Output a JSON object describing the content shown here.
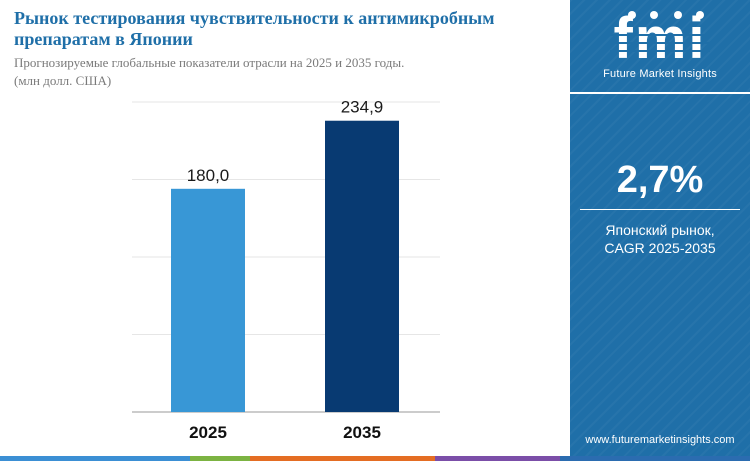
{
  "header": {
    "title": "Рынок тестирования чувствительности к антимикробным препаратам в Японии",
    "subtitle": "Прогнозируемые глобальные показатели отрасли на 2025 и 2035 годы.",
    "unit": "(млн долл. США)"
  },
  "sidebar": {
    "logo_text": "fmi",
    "logo_caption": "Future Market Insights",
    "cagr_value": "2,7%",
    "cagr_label_line1": "Японский рынок,",
    "cagr_label_line2": "CAGR 2025-2035",
    "website": "www.futuremarketinsights.com"
  },
  "chart_data": {
    "type": "bar",
    "categories": [
      "2025",
      "2035"
    ],
    "values": [
      180.0,
      234.9
    ],
    "value_labels": [
      "180,0",
      "234,9"
    ],
    "colors": [
      "#3897d6",
      "#083a72"
    ],
    "ylim": [
      0,
      250
    ],
    "gridlines": true,
    "ticks": [
      0,
      62.5,
      125,
      187.5,
      250
    ],
    "title": "",
    "xlabel": "",
    "ylabel": ""
  },
  "colors": {
    "accent": "#1f6fa8",
    "footer": [
      "#3b8fd4",
      "#7cb342",
      "#e46d23",
      "#7b4ea8",
      "#2b6cb0"
    ]
  }
}
